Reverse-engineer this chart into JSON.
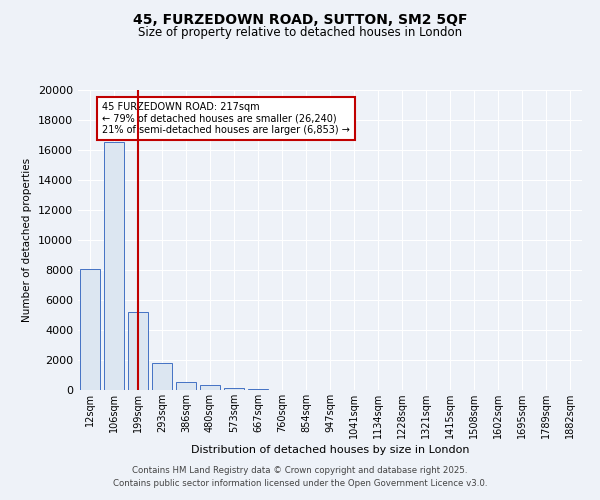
{
  "title_line1": "45, FURZEDOWN ROAD, SUTTON, SM2 5QF",
  "title_line2": "Size of property relative to detached houses in London",
  "xlabel": "Distribution of detached houses by size in London",
  "ylabel": "Number of detached properties",
  "bar_color": "#dce6f1",
  "bar_edge_color": "#4472c4",
  "categories": [
    "12sqm",
    "106sqm",
    "199sqm",
    "293sqm",
    "386sqm",
    "480sqm",
    "573sqm",
    "667sqm",
    "760sqm",
    "854sqm",
    "947sqm",
    "1041sqm",
    "1134sqm",
    "1228sqm",
    "1321sqm",
    "1415sqm",
    "1508sqm",
    "1602sqm",
    "1695sqm",
    "1789sqm",
    "1882sqm"
  ],
  "values": [
    8100,
    16500,
    5200,
    1800,
    550,
    350,
    130,
    80,
    30,
    10,
    0,
    0,
    0,
    0,
    0,
    0,
    0,
    0,
    0,
    0,
    0
  ],
  "ylim": [
    0,
    20000
  ],
  "yticks": [
    0,
    2000,
    4000,
    6000,
    8000,
    10000,
    12000,
    14000,
    16000,
    18000,
    20000
  ],
  "vline_color": "#c00000",
  "vline_x_index": 2,
  "annotation_text": "45 FURZEDOWN ROAD: 217sqm\n← 79% of detached houses are smaller (26,240)\n21% of semi-detached houses are larger (6,853) →",
  "annotation_box_color": "#ffffff",
  "annotation_box_edge_color": "#c00000",
  "footer_line1": "Contains HM Land Registry data © Crown copyright and database right 2025.",
  "footer_line2": "Contains public sector information licensed under the Open Government Licence v3.0.",
  "bg_color": "#eef2f8",
  "grid_color": "#ffffff"
}
